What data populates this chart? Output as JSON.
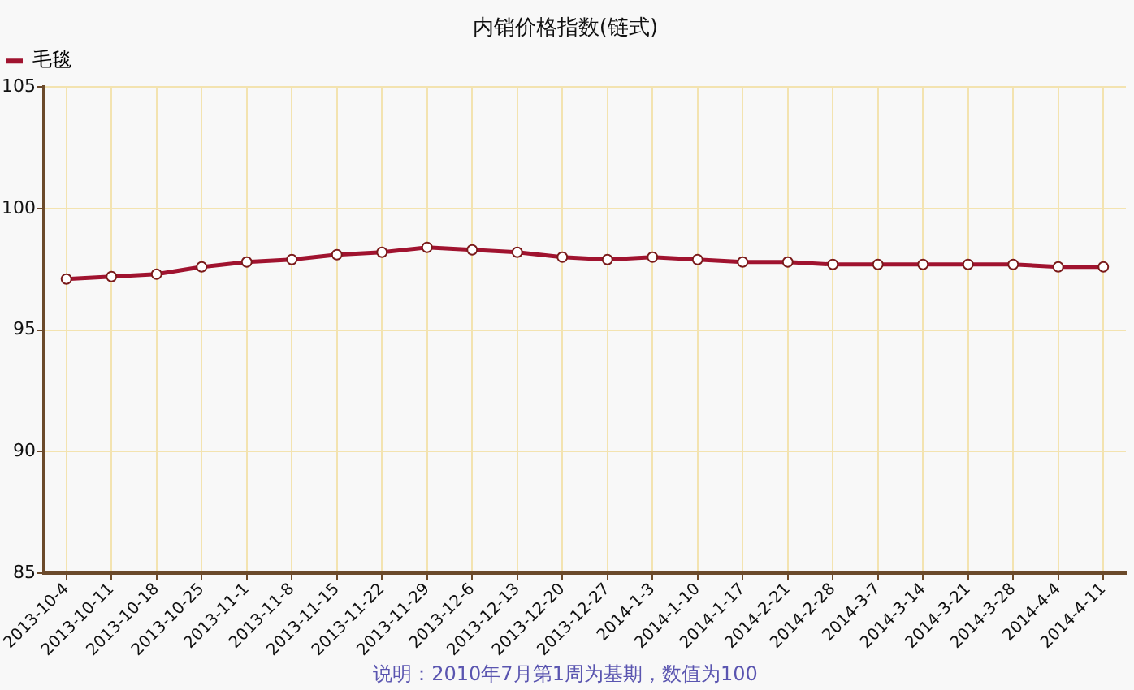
{
  "chart_data": {
    "type": "line",
    "title": "内销价格指数(链式)",
    "annotations": [
      "说明：2010年7月第1周为基期，数值为100"
    ],
    "categories": [
      "2013-10-4",
      "2013-10-11",
      "2013-10-18",
      "2013-10-25",
      "2013-11-1",
      "2013-11-8",
      "2013-11-15",
      "2013-11-22",
      "2013-11-29",
      "2013-12-6",
      "2013-12-13",
      "2013-12-20",
      "2013-12-27",
      "2014-1-3",
      "2014-1-10",
      "2014-1-17",
      "2014-2-21",
      "2014-2-28",
      "2014-3-7",
      "2014-3-14",
      "2014-3-21",
      "2014-3-28",
      "2014-4-4",
      "2014-4-11"
    ],
    "series": [
      {
        "name": "毛毯",
        "color": "#a0132f",
        "values": [
          97.1,
          97.2,
          97.3,
          97.6,
          97.8,
          97.9,
          98.1,
          98.2,
          98.4,
          98.3,
          98.2,
          98.0,
          97.9,
          98.0,
          97.9,
          97.8,
          97.8,
          97.7,
          97.7,
          97.7,
          97.7,
          97.7,
          97.6,
          97.6
        ]
      }
    ],
    "ylim": [
      85,
      105
    ],
    "yticks": [
      85,
      90,
      95,
      100,
      105
    ],
    "grid": true,
    "legend": "top left",
    "marker": "circle",
    "line_style": "solid"
  }
}
